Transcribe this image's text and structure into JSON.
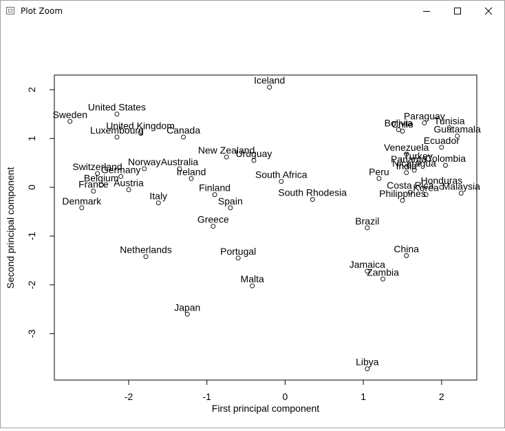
{
  "window": {
    "title": "Plot Zoom",
    "icon": "app-window-icon"
  },
  "controls": {
    "minimize": "minimize-icon",
    "maximize": "maximize-icon",
    "close": "close-icon"
  },
  "chart_data": {
    "type": "scatter",
    "xlabel": "First principal component",
    "ylabel": "Second principal component",
    "xlim": [
      -2.95,
      2.45
    ],
    "ylim": [
      -3.95,
      2.3
    ],
    "xticks": [
      -2,
      -1,
      0,
      1,
      2
    ],
    "yticks": [
      2,
      1,
      0,
      -1,
      -2,
      -3
    ],
    "grid": false,
    "legend": "none",
    "points": [
      {
        "label": "Iceland",
        "x": -0.2,
        "y": 2.05
      },
      {
        "label": "Sweden",
        "x": -2.75,
        "y": 1.35
      },
      {
        "label": "United States",
        "x": -2.15,
        "y": 1.5
      },
      {
        "label": "Luxembourg",
        "x": -2.15,
        "y": 1.03
      },
      {
        "label": "United Kingdom",
        "x": -1.85,
        "y": 1.12
      },
      {
        "label": "Canada",
        "x": -1.3,
        "y": 1.03
      },
      {
        "label": "New Zealand",
        "x": -0.75,
        "y": 0.62
      },
      {
        "label": "Uruguay",
        "x": -0.4,
        "y": 0.55
      },
      {
        "label": "Norway",
        "x": -1.8,
        "y": 0.38
      },
      {
        "label": "Australia",
        "x": -1.35,
        "y": 0.38
      },
      {
        "label": "Switzerland",
        "x": -2.4,
        "y": 0.28
      },
      {
        "label": "Germany",
        "x": -2.1,
        "y": 0.22
      },
      {
        "label": "Ireland",
        "x": -1.2,
        "y": 0.18
      },
      {
        "label": "South Africa",
        "x": -0.05,
        "y": 0.12
      },
      {
        "label": "Belgium",
        "x": -2.35,
        "y": 0.05
      },
      {
        "label": "France",
        "x": -2.45,
        "y": -0.08
      },
      {
        "label": "Austria",
        "x": -2.0,
        "y": -0.05
      },
      {
        "label": "Finland",
        "x": -0.9,
        "y": -0.15
      },
      {
        "label": "Italy",
        "x": -1.62,
        "y": -0.32
      },
      {
        "label": "Spain",
        "x": -0.7,
        "y": -0.42
      },
      {
        "label": "Denmark",
        "x": -2.6,
        "y": -0.42
      },
      {
        "label": "South Rhodesia",
        "x": 0.35,
        "y": -0.25
      },
      {
        "label": "Greece",
        "x": -0.92,
        "y": -0.8
      },
      {
        "label": "Netherlands",
        "x": -1.78,
        "y": -1.42
      },
      {
        "label": "Portugal",
        "x": -0.6,
        "y": -1.45
      },
      {
        "label": "Malta",
        "x": -0.42,
        "y": -2.02
      },
      {
        "label": "Japan",
        "x": -1.25,
        "y": -2.6
      },
      {
        "label": "Brazil",
        "x": 1.05,
        "y": -0.83
      },
      {
        "label": "China",
        "x": 1.55,
        "y": -1.4
      },
      {
        "label": "Jamaica",
        "x": 1.05,
        "y": -1.72
      },
      {
        "label": "Zambia",
        "x": 1.25,
        "y": -1.88
      },
      {
        "label": "Libya",
        "x": 1.05,
        "y": -3.72
      },
      {
        "label": "Chile",
        "x": 1.5,
        "y": 1.15
      },
      {
        "label": "Paraguay",
        "x": 1.78,
        "y": 1.32
      },
      {
        "label": "Tunisia",
        "x": 2.1,
        "y": 1.22
      },
      {
        "label": "Bolivia",
        "x": 1.45,
        "y": 1.18
      },
      {
        "label": "Guatamala",
        "x": 2.2,
        "y": 1.05
      },
      {
        "label": "Ecuador",
        "x": 2.0,
        "y": 0.82
      },
      {
        "label": "Venezuela",
        "x": 1.55,
        "y": 0.68
      },
      {
        "label": "Turkey",
        "x": 1.7,
        "y": 0.5
      },
      {
        "label": "Panama",
        "x": 1.58,
        "y": 0.44
      },
      {
        "label": "Colombia",
        "x": 2.05,
        "y": 0.45
      },
      {
        "label": "India",
        "x": 1.55,
        "y": 0.3
      },
      {
        "label": "Nicaragua",
        "x": 1.65,
        "y": 0.35
      },
      {
        "label": "Peru",
        "x": 1.2,
        "y": 0.18
      },
      {
        "label": "Honduras",
        "x": 2.0,
        "y": 0.0
      },
      {
        "label": "Costa Rica",
        "x": 1.6,
        "y": -0.1
      },
      {
        "label": "Malaysia",
        "x": 2.25,
        "y": -0.12
      },
      {
        "label": "Korea",
        "x": 1.8,
        "y": -0.15
      },
      {
        "label": "Philippines",
        "x": 1.5,
        "y": -0.27
      }
    ]
  }
}
